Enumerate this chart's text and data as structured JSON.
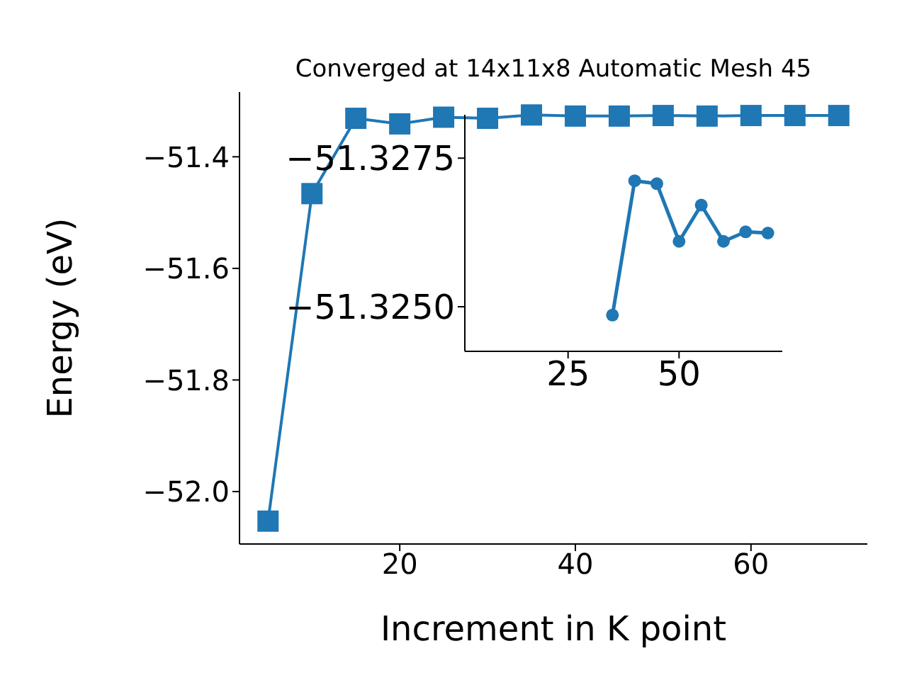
{
  "chart_data": [
    {
      "type": "line",
      "title": "Converged at 14x11x8 Automatic Mesh 45",
      "xlabel": "Increment in K point",
      "ylabel": "Energy (eV)",
      "x": [
        5,
        10,
        15,
        20,
        25,
        30,
        35,
        40,
        45,
        50,
        55,
        60,
        65,
        70
      ],
      "series": [
        {
          "color": "#1f77b4",
          "values": [
            -52.053,
            -51.466,
            -51.331,
            -51.341,
            -51.329,
            -51.331,
            -51.325,
            -51.327,
            -51.327,
            -51.326,
            -51.327,
            -51.326,
            -51.326,
            -51.326
          ]
        }
      ],
      "xlim": [
        1.75,
        73.25
      ],
      "xticks": [
        20,
        40,
        60
      ],
      "ylim": [
        -52.094,
        -51.284
      ],
      "yticks": [
        {
          "value": -52.0,
          "label": "−52.0"
        },
        {
          "value": -51.8,
          "label": "−51.8"
        },
        {
          "value": -51.6,
          "label": "−51.6"
        },
        {
          "value": -51.4,
          "label": "−51.4"
        }
      ],
      "marker": "square",
      "grid": false,
      "legend": false
    },
    {
      "type": "line",
      "x": [
        35,
        40,
        45,
        50,
        55,
        60,
        65,
        70
      ],
      "series": [
        {
          "color": "#1f77b4",
          "values": [
            -51.32486,
            -51.32712,
            -51.32707,
            -51.3261,
            -51.32671,
            -51.3261,
            -51.32626,
            -51.32624
          ]
        }
      ],
      "xlim": [
        1.75,
        73.25
      ],
      "xticks": [
        25,
        50
      ],
      "ylim": [
        -51.32425,
        -51.32823
      ],
      "yticks": [
        {
          "value": -51.3275,
          "label": "−51.3275"
        },
        {
          "value": -51.325,
          "label": "−51.3250"
        }
      ],
      "marker": "circle",
      "grid": false,
      "legend": false
    }
  ]
}
